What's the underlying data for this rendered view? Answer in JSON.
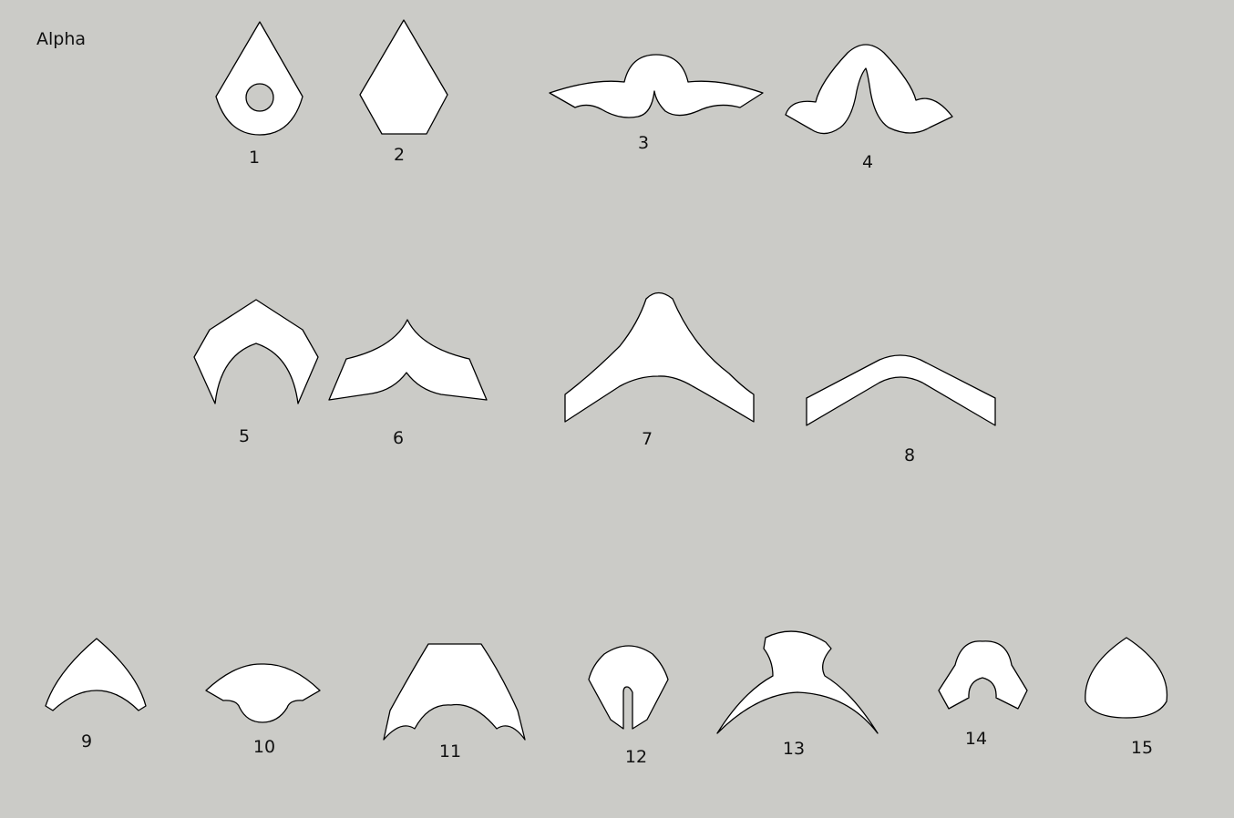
{
  "title": "Alpha",
  "colors": {
    "background": "#cbcbc7",
    "shape_fill": "#ffffff",
    "outline": "#000000"
  },
  "pieces": [
    {
      "label": "1"
    },
    {
      "label": "2"
    },
    {
      "label": "3"
    },
    {
      "label": "4"
    },
    {
      "label": "5"
    },
    {
      "label": "6"
    },
    {
      "label": "7"
    },
    {
      "label": "8"
    },
    {
      "label": "9"
    },
    {
      "label": "10"
    },
    {
      "label": "11"
    },
    {
      "label": "12"
    },
    {
      "label": "13"
    },
    {
      "label": "14"
    },
    {
      "label": "15"
    }
  ]
}
